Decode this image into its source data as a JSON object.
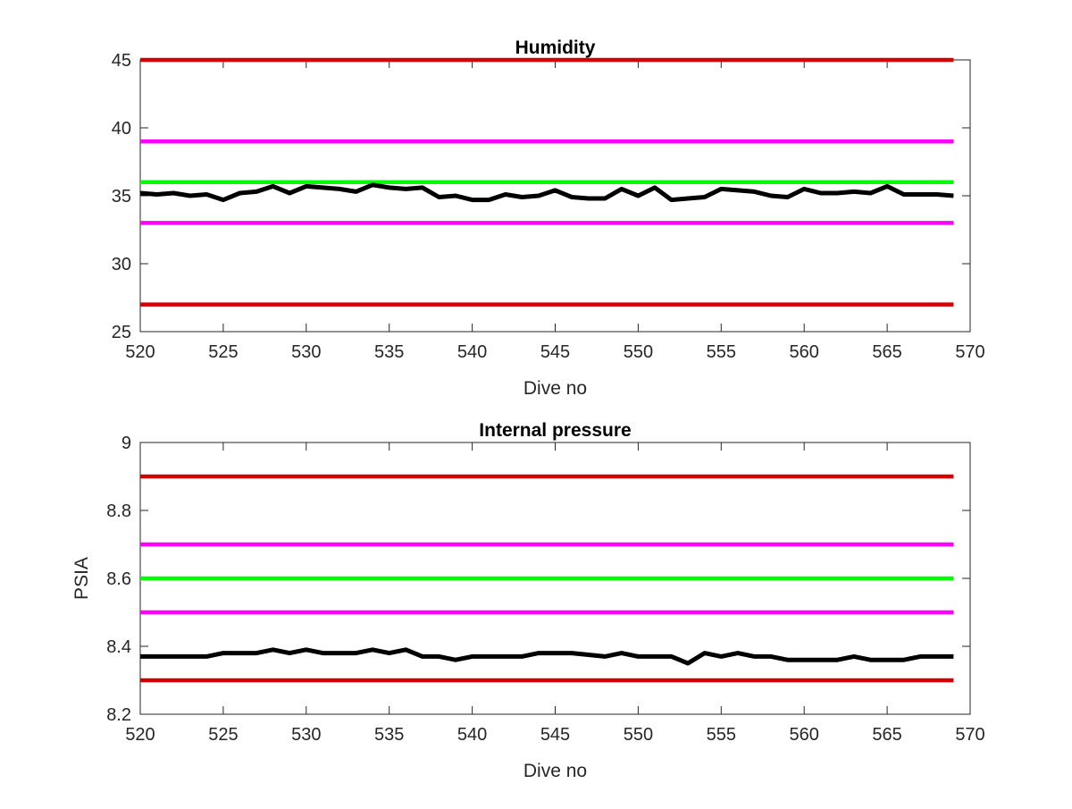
{
  "colors": {
    "data": "#000000",
    "red_limit": "#d40000",
    "magenta_limit": "#ff00ff",
    "green_target": "#00ff00",
    "axis": "#262626"
  },
  "chart_data": [
    {
      "type": "line",
      "title": "Humidity",
      "xlabel": "Dive no",
      "ylabel": "",
      "xlim": [
        520,
        570
      ],
      "ylim": [
        25,
        45
      ],
      "xticks": [
        520,
        525,
        530,
        535,
        540,
        545,
        550,
        555,
        560,
        565,
        570
      ],
      "yticks": [
        25,
        30,
        35,
        40,
        45
      ],
      "grid": false,
      "series": [
        {
          "color": "#000000",
          "x": [
            520,
            521,
            522,
            523,
            524,
            525,
            526,
            527,
            528,
            529,
            530,
            531,
            532,
            533,
            534,
            535,
            536,
            537,
            538,
            539,
            540,
            541,
            542,
            543,
            544,
            545,
            546,
            547,
            548,
            549,
            550,
            551,
            552,
            553,
            554,
            555,
            556,
            557,
            558,
            559,
            560,
            561,
            562,
            563,
            564,
            565,
            566,
            567,
            568,
            569
          ],
          "y": [
            35.2,
            35.1,
            35.2,
            35.0,
            35.1,
            34.7,
            35.2,
            35.3,
            35.7,
            35.2,
            35.7,
            35.6,
            35.5,
            35.3,
            35.8,
            35.6,
            35.5,
            35.6,
            34.9,
            35.0,
            34.7,
            34.7,
            35.1,
            34.9,
            35.0,
            35.4,
            34.9,
            34.8,
            34.8,
            35.5,
            35.0,
            35.6,
            34.7,
            34.8,
            34.9,
            35.5,
            35.4,
            35.3,
            35.0,
            34.9,
            35.5,
            35.2,
            35.2,
            35.3,
            35.2,
            35.7,
            35.1,
            35.1,
            35.1,
            35.0
          ]
        },
        {
          "color": "#d40000",
          "x": [
            520,
            569
          ],
          "y": [
            45,
            45
          ]
        },
        {
          "color": "#ff00ff",
          "x": [
            520,
            569
          ],
          "y": [
            39,
            39
          ]
        },
        {
          "color": "#00ff00",
          "x": [
            520,
            569
          ],
          "y": [
            36,
            36
          ]
        },
        {
          "color": "#ff00ff",
          "x": [
            520,
            569
          ],
          "y": [
            33,
            33
          ]
        },
        {
          "color": "#d40000",
          "x": [
            520,
            569
          ],
          "y": [
            27,
            27
          ]
        }
      ]
    },
    {
      "type": "line",
      "title": "Internal pressure",
      "xlabel": "Dive no",
      "ylabel": "PSIA",
      "xlim": [
        520,
        570
      ],
      "ylim": [
        8.2,
        9
      ],
      "xticks": [
        520,
        525,
        530,
        535,
        540,
        545,
        550,
        555,
        560,
        565,
        570
      ],
      "yticks": [
        "8.2",
        "8.4",
        "8.6",
        "8.8",
        "9"
      ],
      "grid": false,
      "series": [
        {
          "color": "#000000",
          "x": [
            520,
            521,
            522,
            523,
            524,
            525,
            526,
            527,
            528,
            529,
            530,
            531,
            532,
            533,
            534,
            535,
            536,
            537,
            538,
            539,
            540,
            541,
            542,
            543,
            544,
            545,
            546,
            547,
            548,
            549,
            550,
            551,
            552,
            553,
            554,
            555,
            556,
            557,
            558,
            559,
            560,
            561,
            562,
            563,
            564,
            565,
            566,
            567,
            568,
            569
          ],
          "y": [
            8.37,
            8.37,
            8.37,
            8.37,
            8.37,
            8.38,
            8.38,
            8.38,
            8.39,
            8.38,
            8.39,
            8.38,
            8.38,
            8.38,
            8.39,
            8.38,
            8.39,
            8.37,
            8.37,
            8.36,
            8.37,
            8.37,
            8.37,
            8.37,
            8.38,
            8.38,
            8.38,
            8.375,
            8.37,
            8.38,
            8.37,
            8.37,
            8.37,
            8.35,
            8.38,
            8.37,
            8.38,
            8.37,
            8.37,
            8.36,
            8.36,
            8.36,
            8.36,
            8.37,
            8.36,
            8.36,
            8.36,
            8.37,
            8.37,
            8.37
          ]
        },
        {
          "color": "#d40000",
          "x": [
            520,
            569
          ],
          "y": [
            8.9,
            8.9
          ]
        },
        {
          "color": "#ff00ff",
          "x": [
            520,
            569
          ],
          "y": [
            8.7,
            8.7
          ]
        },
        {
          "color": "#00ff00",
          "x": [
            520,
            569
          ],
          "y": [
            8.6,
            8.6
          ]
        },
        {
          "color": "#ff00ff",
          "x": [
            520,
            569
          ],
          "y": [
            8.5,
            8.5
          ]
        },
        {
          "color": "#d40000",
          "x": [
            520,
            569
          ],
          "y": [
            8.3,
            8.3
          ]
        }
      ]
    }
  ]
}
